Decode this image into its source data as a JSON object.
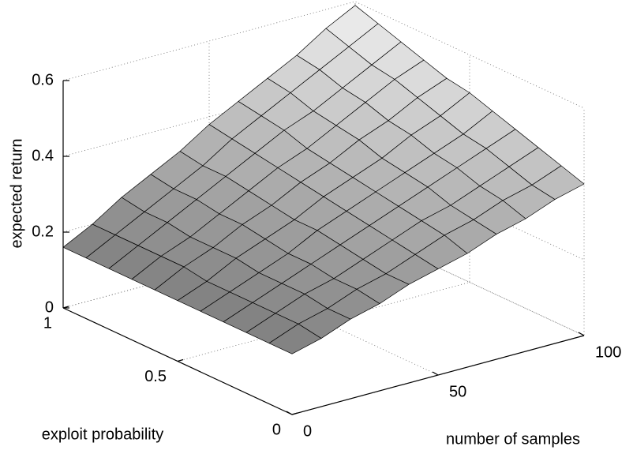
{
  "chart_data": {
    "type": "surface",
    "xlabel": "number of samples",
    "ylabel": "exploit probability",
    "zlabel": "expected return",
    "x": [
      0,
      10,
      20,
      30,
      40,
      50,
      60,
      70,
      80,
      90,
      100
    ],
    "y": [
      0,
      0.1,
      0.2,
      0.3,
      0.4,
      0.5,
      0.6,
      0.7,
      0.8,
      0.9,
      1
    ],
    "z": [
      [
        0.16,
        0.18,
        0.21,
        0.23,
        0.26,
        0.28,
        0.3,
        0.33,
        0.35,
        0.38,
        0.4
      ],
      [
        0.16,
        0.19,
        0.21,
        0.24,
        0.26,
        0.29,
        0.32,
        0.34,
        0.37,
        0.39,
        0.42
      ],
      [
        0.16,
        0.19,
        0.22,
        0.24,
        0.27,
        0.3,
        0.33,
        0.35,
        0.38,
        0.41,
        0.44
      ],
      [
        0.16,
        0.19,
        0.22,
        0.25,
        0.28,
        0.31,
        0.34,
        0.37,
        0.4,
        0.43,
        0.46
      ],
      [
        0.16,
        0.19,
        0.22,
        0.25,
        0.29,
        0.32,
        0.35,
        0.38,
        0.41,
        0.44,
        0.48
      ],
      [
        0.16,
        0.19,
        0.23,
        0.26,
        0.29,
        0.33,
        0.36,
        0.39,
        0.43,
        0.46,
        0.5
      ],
      [
        0.16,
        0.2,
        0.23,
        0.27,
        0.3,
        0.34,
        0.37,
        0.41,
        0.44,
        0.48,
        0.51
      ],
      [
        0.16,
        0.2,
        0.23,
        0.27,
        0.31,
        0.35,
        0.38,
        0.42,
        0.46,
        0.5,
        0.53
      ],
      [
        0.16,
        0.2,
        0.24,
        0.28,
        0.32,
        0.36,
        0.4,
        0.43,
        0.47,
        0.51,
        0.55
      ],
      [
        0.16,
        0.2,
        0.24,
        0.28,
        0.32,
        0.37,
        0.41,
        0.45,
        0.49,
        0.53,
        0.57
      ],
      [
        0.16,
        0.2,
        0.25,
        0.29,
        0.33,
        0.38,
        0.42,
        0.46,
        0.5,
        0.55,
        0.59
      ]
    ],
    "xlim": [
      0,
      100
    ],
    "xticks": [
      0,
      50,
      100
    ],
    "ylim": [
      0,
      1
    ],
    "yticks": [
      0,
      0.5,
      1
    ],
    "zlim": [
      0,
      0.6
    ],
    "zticks": [
      0,
      0.2,
      0.4,
      0.6
    ],
    "grid": true,
    "colormap": [
      "#555555",
      "#f4f4f4"
    ],
    "edge_color": "#000000"
  }
}
